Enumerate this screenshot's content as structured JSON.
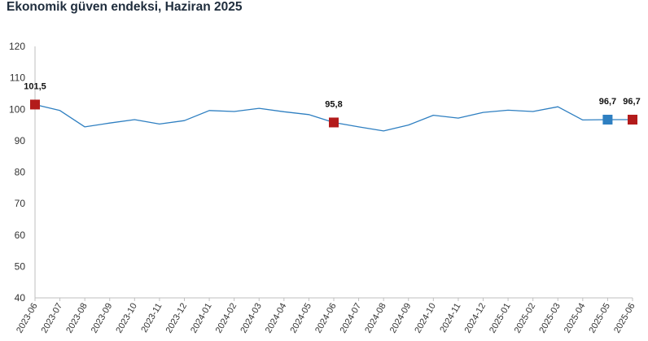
{
  "chart_data": {
    "type": "line",
    "title": "Ekonomik güven endeksi, Haziran 2025",
    "xlabel": "",
    "ylabel": "",
    "ylim": [
      40,
      120
    ],
    "yticks": [
      40,
      50,
      60,
      70,
      80,
      90,
      100,
      110,
      120
    ],
    "grid": false,
    "categories": [
      "2023-06",
      "2023-07",
      "2023-08",
      "2023-09",
      "2023-10",
      "2023-11",
      "2023-12",
      "2024-01",
      "2024-02",
      "2024-03",
      "2024-04",
      "2024-05",
      "2024-06",
      "2024-07",
      "2024-08",
      "2024-09",
      "2024-10",
      "2024-11",
      "2024-12",
      "2025-01",
      "2025-02",
      "2025-03",
      "2025-04",
      "2025-05",
      "2025-06"
    ],
    "series": [
      {
        "values": [
          101.5,
          99.6,
          94.4,
          95.6,
          96.7,
          95.3,
          96.4,
          99.6,
          99.3,
          100.3,
          99.2,
          98.3,
          95.8,
          94.4,
          93.1,
          95.0,
          98.1,
          97.2,
          99.0,
          99.7,
          99.3,
          100.8,
          96.6,
          96.7,
          96.7
        ],
        "color": "#2e7fc1"
      }
    ],
    "markers": [
      {
        "index": 0,
        "label": "101,5",
        "color": "#b31b1b"
      },
      {
        "index": 12,
        "label": "95,8",
        "color": "#b31b1b"
      },
      {
        "index": 23,
        "label": "96,7",
        "color": "#2e7fc1"
      },
      {
        "index": 24,
        "label": "96,7",
        "color": "#b31b1b"
      }
    ],
    "colors": {
      "line": "#2e7fc1",
      "axis": "#bfbfbf",
      "marker_red": "#b31b1b",
      "marker_blue": "#2e7fc1"
    }
  }
}
